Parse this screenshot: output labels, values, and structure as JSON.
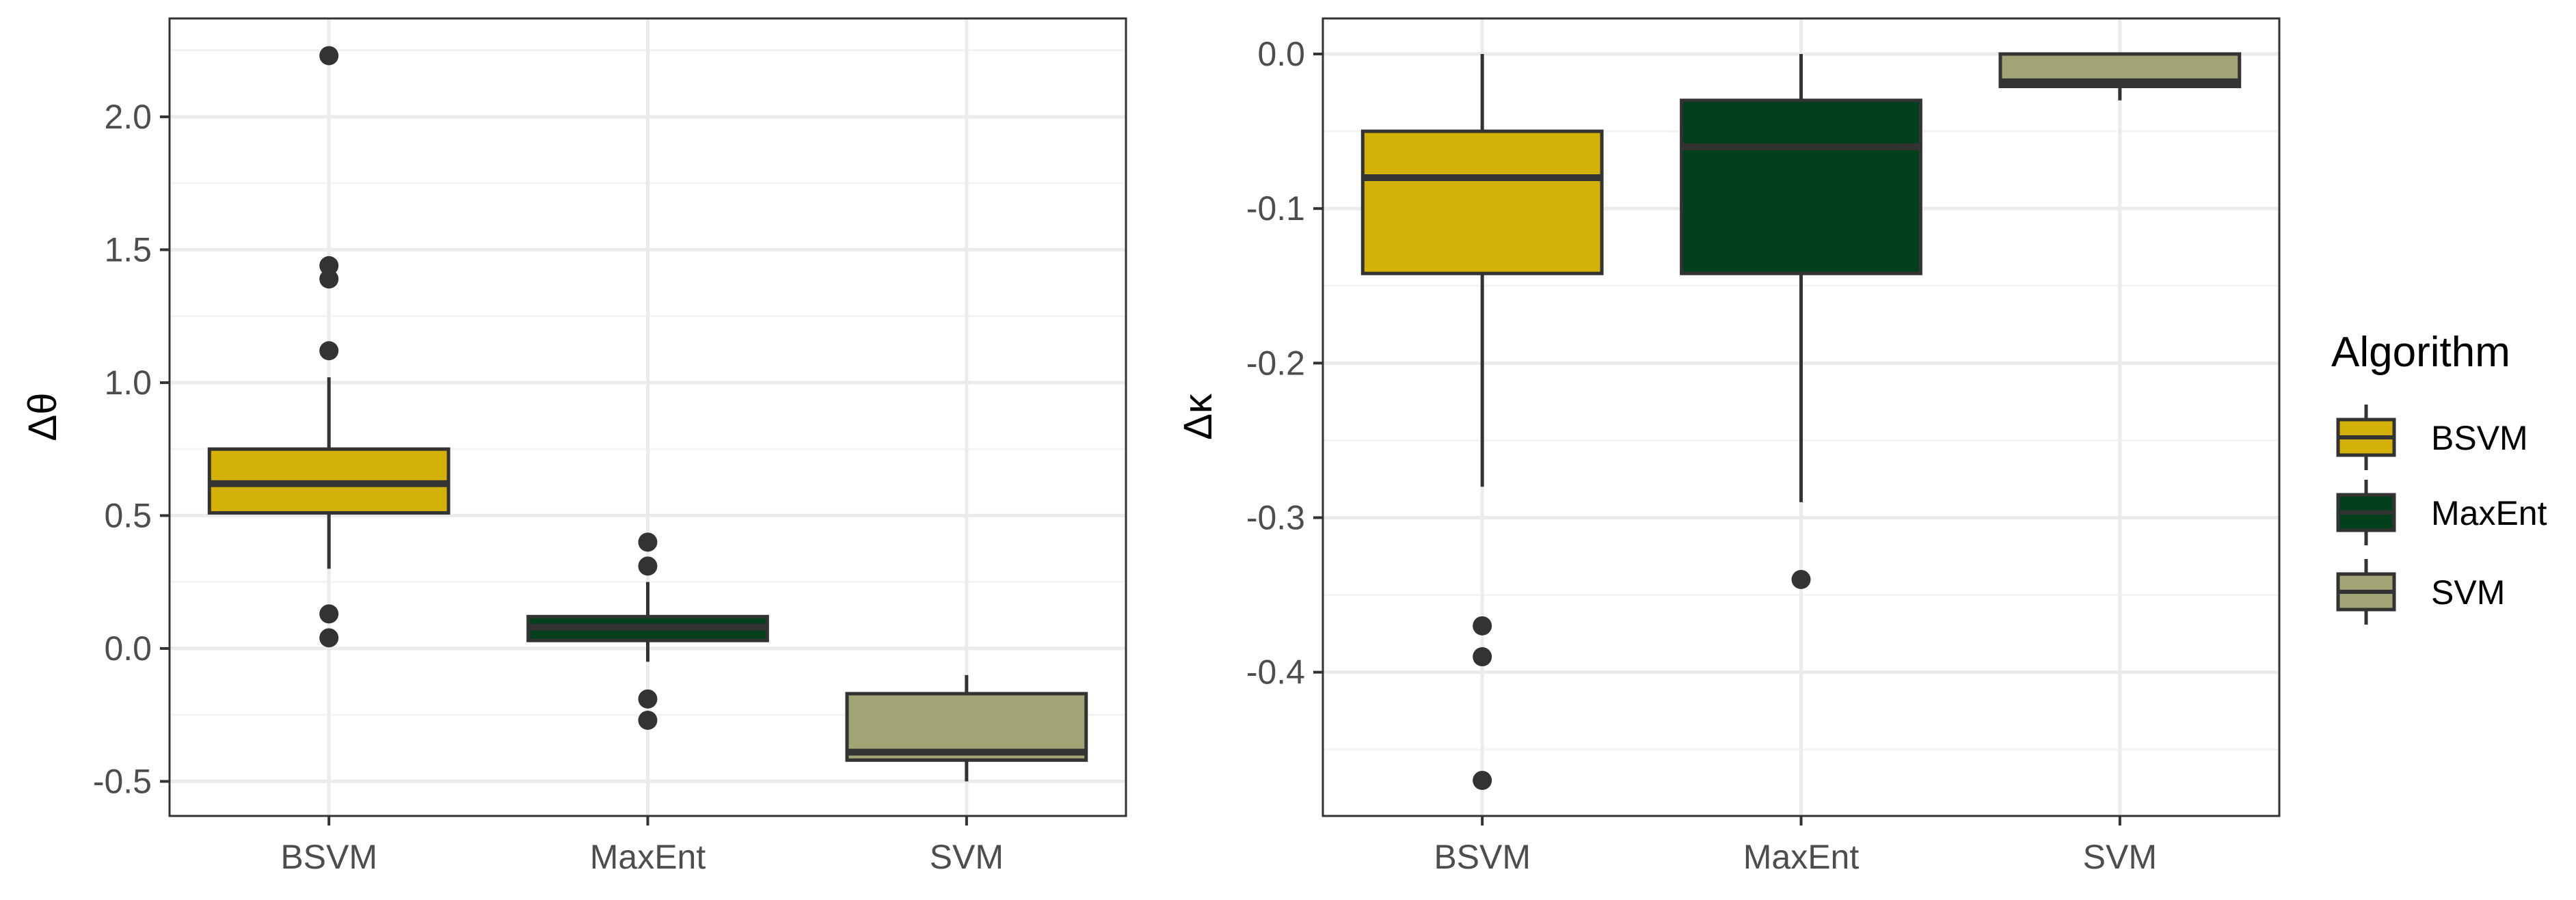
{
  "chart_data": [
    {
      "type": "boxplot",
      "title": "",
      "xlabel": "",
      "ylabel": "Δθ",
      "categories": [
        "BSVM",
        "MaxEnt",
        "SVM"
      ],
      "ylim": [
        -0.63,
        2.37
      ],
      "y_ticks": [
        -0.5,
        0.0,
        0.5,
        1.0,
        1.5,
        2.0
      ],
      "y_tick_labels": [
        "-0.5",
        "0.0",
        "0.5",
        "1.0",
        "1.5",
        "2.0"
      ],
      "grid": true,
      "boxes": [
        {
          "category": "BSVM",
          "fill": "#d4b106",
          "whisker_low": 0.3,
          "q1": 0.51,
          "median": 0.62,
          "q3": 0.75,
          "whisker_high": 1.02,
          "outliers": [
            2.23,
            1.44,
            1.39,
            1.12,
            0.13,
            0.04
          ]
        },
        {
          "category": "MaxEnt",
          "fill": "#02401b",
          "whisker_low": -0.05,
          "q1": 0.03,
          "median": 0.08,
          "q3": 0.12,
          "whisker_high": 0.25,
          "outliers": [
            0.4,
            0.31,
            -0.19,
            -0.27
          ]
        },
        {
          "category": "SVM",
          "fill": "#a2a475",
          "whisker_low": -0.5,
          "q1": -0.42,
          "median": -0.39,
          "q3": -0.17,
          "whisker_high": -0.1,
          "outliers": []
        }
      ]
    },
    {
      "type": "boxplot",
      "title": "",
      "xlabel": "",
      "ylabel": "Δκ",
      "categories": [
        "BSVM",
        "MaxEnt",
        "SVM"
      ],
      "ylim": [
        -0.493,
        0.023
      ],
      "y_ticks": [
        -0.4,
        -0.3,
        -0.2,
        -0.1,
        0.0
      ],
      "y_tick_labels": [
        "-0.4",
        "-0.3",
        "-0.2",
        "-0.1",
        "0.0"
      ],
      "grid": true,
      "boxes": [
        {
          "category": "BSVM",
          "fill": "#d4b106",
          "whisker_low": -0.28,
          "q1": -0.142,
          "median": -0.08,
          "q3": -0.05,
          "whisker_high": 0.0,
          "outliers": [
            -0.37,
            -0.39,
            -0.47
          ]
        },
        {
          "category": "MaxEnt",
          "fill": "#02401b",
          "whisker_low": -0.29,
          "q1": -0.142,
          "median": -0.06,
          "q3": -0.03,
          "whisker_high": 0.0,
          "outliers": [
            -0.34
          ]
        },
        {
          "category": "SVM",
          "fill": "#a2a475",
          "whisker_low": -0.03,
          "q1": -0.021,
          "median": -0.018,
          "q3": 0.0,
          "whisker_high": 0.0,
          "outliers": []
        }
      ]
    }
  ],
  "legend": {
    "title": "Algorithm",
    "position": "right",
    "items": [
      {
        "label": "BSVM",
        "color": "#d4b106"
      },
      {
        "label": "MaxEnt",
        "color": "#02401b"
      },
      {
        "label": "SVM",
        "color": "#a2a475"
      }
    ]
  },
  "colors": {
    "box_line": "#333333",
    "outlier": "#333333",
    "grid_major": "#ebebeb",
    "grid_minor": "#f3f3f3",
    "panel_border": "#333333"
  }
}
